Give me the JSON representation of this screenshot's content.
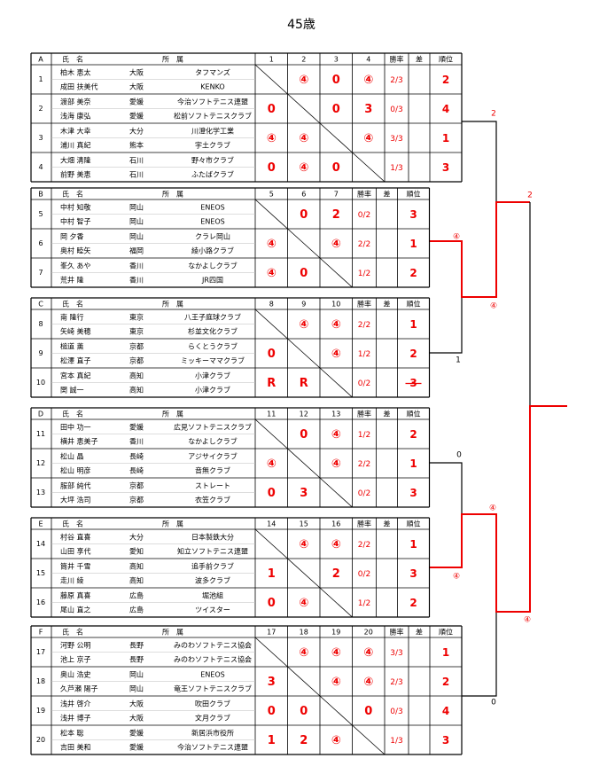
{
  "title": "45歳",
  "labels": {
    "name": "氏　名",
    "club": "所　属",
    "winrate": "勝率",
    "diff": "差",
    "rank": "順位"
  },
  "groups": [
    {
      "letter": "A",
      "matches": [
        1,
        2,
        3,
        4
      ],
      "teams": [
        {
          "no": 1,
          "players": [
            {
              "name": "柏木 恵太",
              "pref": "大阪",
              "club": "タフマンズ"
            },
            {
              "name": "成田 扶美代",
              "pref": "大阪",
              "club": "KENKO"
            }
          ],
          "results": [
            null,
            "④",
            0,
            "④"
          ],
          "winrate": "2/3",
          "rank": 2
        },
        {
          "no": 2,
          "players": [
            {
              "name": "渡部 美奈",
              "pref": "愛媛",
              "club": "今治ソフトテニス連盟"
            },
            {
              "name": "浅海 康弘",
              "pref": "愛媛",
              "club": "松前ソフトテニスクラブ"
            }
          ],
          "results": [
            0,
            null,
            0,
            3
          ],
          "winrate": "0/3",
          "rank": 4
        },
        {
          "no": 3,
          "players": [
            {
              "name": "木津 大幸",
              "pref": "大分",
              "club": "川澄化学工業"
            },
            {
              "name": "浦川 真紀",
              "pref": "熊本",
              "club": "宇土クラブ"
            }
          ],
          "results": [
            "④",
            "④",
            null,
            "④"
          ],
          "winrate": "3/3",
          "rank": 1
        },
        {
          "no": 4,
          "players": [
            {
              "name": "大畑 清隆",
              "pref": "石川",
              "club": "野々市クラブ"
            },
            {
              "name": "前野 美恵",
              "pref": "石川",
              "club": "ふたばクラブ"
            }
          ],
          "results": [
            0,
            "④",
            0,
            null
          ],
          "winrate": "1/3",
          "rank": 3
        }
      ]
    },
    {
      "letter": "B",
      "matches": [
        5,
        6,
        7
      ],
      "teams": [
        {
          "no": 5,
          "players": [
            {
              "name": "中村 知敬",
              "pref": "岡山",
              "club": "ENEOS"
            },
            {
              "name": "中村 智子",
              "pref": "岡山",
              "club": "ENEOS"
            }
          ],
          "results": [
            null,
            0,
            2
          ],
          "winrate": "0/2",
          "rank": 3
        },
        {
          "no": 6,
          "players": [
            {
              "name": "岡 夕香",
              "pref": "岡山",
              "club": "クラレ岡山"
            },
            {
              "name": "奥村 睦矢",
              "pref": "福岡",
              "club": "綾小路クラブ"
            }
          ],
          "results": [
            "④",
            null,
            "④"
          ],
          "winrate": "2/2",
          "rank": 1
        },
        {
          "no": 7,
          "players": [
            {
              "name": "峯久 あや",
              "pref": "香川",
              "club": "なかよしクラブ"
            },
            {
              "name": "荒井 隆",
              "pref": "香川",
              "club": "JR四国"
            }
          ],
          "results": [
            "④",
            0,
            null
          ],
          "winrate": "1/2",
          "rank": 2
        }
      ]
    },
    {
      "letter": "C",
      "matches": [
        8,
        9,
        10
      ],
      "teams": [
        {
          "no": 8,
          "players": [
            {
              "name": "南 隆行",
              "pref": "東京",
              "club": "八王子庭球クラブ"
            },
            {
              "name": "矢崎 美穂",
              "pref": "東京",
              "club": "杉並文化クラブ"
            }
          ],
          "results": [
            null,
            "④",
            "④"
          ],
          "winrate": "2/2",
          "rank": 1
        },
        {
          "no": 9,
          "players": [
            {
              "name": "槌道 薫",
              "pref": "京都",
              "club": "らくとうクラブ"
            },
            {
              "name": "松澤 直子",
              "pref": "京都",
              "club": "ミッキーママクラブ"
            }
          ],
          "results": [
            0,
            null,
            "④"
          ],
          "winrate": "1/2",
          "rank": 2
        },
        {
          "no": 10,
          "players": [
            {
              "name": "宮本 真紀",
              "pref": "高知",
              "club": "小津クラブ"
            },
            {
              "name": "関 誠一",
              "pref": "高知",
              "club": "小津クラブ"
            }
          ],
          "results": [
            "R",
            "R",
            null
          ],
          "winrate": "0/2",
          "rank": 3,
          "strike": true
        }
      ]
    },
    {
      "letter": "D",
      "matches": [
        11,
        12,
        13
      ],
      "teams": [
        {
          "no": 11,
          "players": [
            {
              "name": "田中 功一",
              "pref": "愛媛",
              "club": "広見ソフトテニスクラブ"
            },
            {
              "name": "横井 恵美子",
              "pref": "香川",
              "club": "なかよしクラブ"
            }
          ],
          "results": [
            null,
            0,
            "④"
          ],
          "winrate": "1/2",
          "rank": 2
        },
        {
          "no": 12,
          "players": [
            {
              "name": "松山 晶",
              "pref": "長崎",
              "club": "アジサイクラブ"
            },
            {
              "name": "松山 明彦",
              "pref": "長崎",
              "club": "音無クラブ"
            }
          ],
          "results": [
            "④",
            null,
            "④"
          ],
          "winrate": "2/2",
          "rank": 1
        },
        {
          "no": 13,
          "players": [
            {
              "name": "服部 純代",
              "pref": "京都",
              "club": "ストレート"
            },
            {
              "name": "大坪 浩司",
              "pref": "京都",
              "club": "衣笠クラブ"
            }
          ],
          "results": [
            0,
            3,
            null
          ],
          "winrate": "0/2",
          "rank": 3
        }
      ]
    },
    {
      "letter": "E",
      "matches": [
        14,
        15,
        16
      ],
      "teams": [
        {
          "no": 14,
          "players": [
            {
              "name": "村谷 直喜",
              "pref": "大分",
              "club": "日本製鉄大分"
            },
            {
              "name": "山田 享代",
              "pref": "愛知",
              "club": "知立ソフトテニス連盟"
            }
          ],
          "results": [
            null,
            "④",
            "④"
          ],
          "winrate": "2/2",
          "rank": 1
        },
        {
          "no": 15,
          "players": [
            {
              "name": "筒井 千雪",
              "pref": "高知",
              "club": "追手前クラブ"
            },
            {
              "name": "走川 綾",
              "pref": "高知",
              "club": "波多クラブ"
            }
          ],
          "results": [
            1,
            null,
            2
          ],
          "winrate": "0/2",
          "rank": 3
        },
        {
          "no": 16,
          "players": [
            {
              "name": "藤原 真喜",
              "pref": "広島",
              "club": "堀池組"
            },
            {
              "name": "尾山 直之",
              "pref": "広島",
              "club": "ツイスター"
            }
          ],
          "results": [
            0,
            "④",
            null
          ],
          "winrate": "1/2",
          "rank": 2
        }
      ]
    },
    {
      "letter": "F",
      "matches": [
        17,
        18,
        19,
        20
      ],
      "teams": [
        {
          "no": 17,
          "players": [
            {
              "name": "河野 公明",
              "pref": "長野",
              "club": "みのわソフトテニス協会"
            },
            {
              "name": "池上 京子",
              "pref": "長野",
              "club": "みのわソフトテニス協会"
            }
          ],
          "results": [
            null,
            "④",
            "④",
            "④"
          ],
          "winrate": "3/3",
          "rank": 1
        },
        {
          "no": 18,
          "players": [
            {
              "name": "奥山 浩史",
              "pref": "岡山",
              "club": "ENEOS"
            },
            {
              "name": "久芦瀬 陽子",
              "pref": "岡山",
              "club": "竜王ソフトテニスクラブ"
            }
          ],
          "results": [
            3,
            null,
            "④",
            "④"
          ],
          "winrate": "2/3",
          "rank": 2
        },
        {
          "no": 19,
          "players": [
            {
              "name": "浅井 啓介",
              "pref": "大阪",
              "club": "吹田クラブ"
            },
            {
              "name": "浅井 博子",
              "pref": "大阪",
              "club": "文月クラブ"
            }
          ],
          "results": [
            0,
            0,
            null,
            0
          ],
          "winrate": "0/3",
          "rank": 4
        },
        {
          "no": 20,
          "players": [
            {
              "name": "松本 聡",
              "pref": "愛媛",
              "club": "新居浜市役所"
            },
            {
              "name": "吉田 美和",
              "pref": "愛媛",
              "club": "今治ソフトテニス連盟"
            }
          ],
          "results": [
            1,
            2,
            "④",
            null
          ],
          "winrate": "1/3",
          "rank": 3
        }
      ]
    }
  ],
  "bracket": {
    "labels": [
      "2",
      "2",
      "④",
      "④",
      "1",
      "0",
      "④",
      "④",
      "④",
      "0"
    ]
  }
}
